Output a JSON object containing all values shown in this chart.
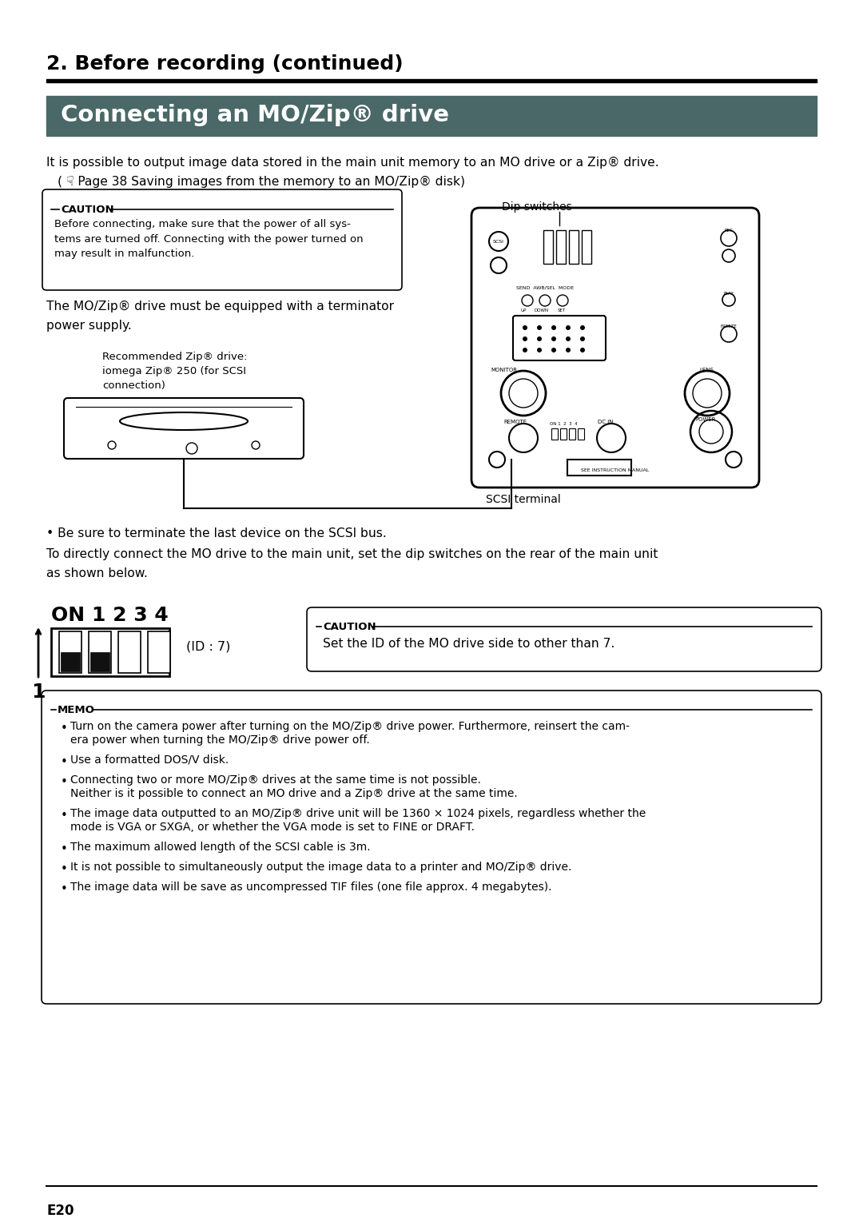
{
  "page_bg": "#ffffff",
  "section_title": "2. Before recording (continued)",
  "section_title_color": "#000000",
  "section_title_fontsize": 18,
  "header_bg": "#4a6868",
  "header_text": "Connecting an MO/Zip® drive",
  "header_text_color": "#ffffff",
  "header_fontsize": 21,
  "body_text_1": "It is possible to output image data stored in the main unit memory to an MO drive or a Zip® drive.",
  "body_text_2": "( ☟ Page 38 Saving images from the memory to an MO/Zip® disk)",
  "caution1_title": "CAUTION",
  "caution1_text": "Before connecting, make sure that the power of all sys-\ntems are turned off. Connecting with the power turned on\nmay result in malfunction.",
  "dip_switches_label": "Dip switches",
  "scsi_terminal_label": "SCSI terminal",
  "body_text_3a": "The MO/Zip® drive must be equipped with a terminator",
  "body_text_3b": "power supply.",
  "zip_label1": "Recommended Zip® drive:",
  "zip_label2": "iomega Zip® 250 (for SCSI",
  "zip_label3": "connection)",
  "bullet1": "• Be sure to terminate the last device on the SCSI bus.",
  "body_text_4a": "To directly connect the MO drive to the main unit, set the dip switches on the rear of the main unit",
  "body_text_4b": "as shown below.",
  "id_label": "(ID : 7)",
  "caution2_title": "CAUTION",
  "caution2_text": "Set the ID of the MO drive side to other than 7.",
  "memo_title": "MEMO",
  "memo_bullets": [
    "Turn on the camera power after turning on the MO/Zip® drive power. Furthermore, reinsert the cam-\nera power when turning the MO/Zip® drive power off.",
    "Use a formatted DOS/V disk.",
    "Connecting two or more MO/Zip® drives at the same time is not possible.\nNeither is it possible to connect an MO drive and a Zip® drive at the same time.",
    "The image data outputted to an MO/Zip® drive unit will be 1360 × 1024 pixels, regardless whether the\nmode is VGA or SXGA, or whether the VGA mode is set to FINE or DRAFT.",
    "The maximum allowed length of the SCSI cable is 3m.",
    "It is not possible to simultaneously output the image data to a printer and MO/Zip® drive.",
    "The image data will be save as uncompressed TIF files (one file approx. 4 megabytes)."
  ],
  "footer_text": "E20"
}
